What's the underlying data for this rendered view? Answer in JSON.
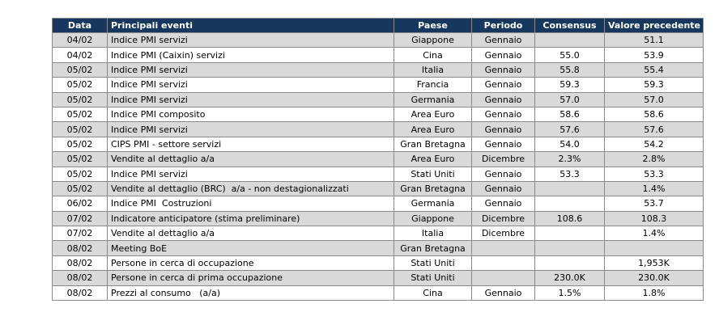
{
  "table": {
    "header": [
      "Data",
      "Principali eventi",
      "Paese",
      "Periodo",
      "Consensus",
      "Valore precedente"
    ],
    "rows": [
      [
        "04/02",
        "Indice PMI servizi",
        "Giappone",
        "Gennaio",
        null,
        "51.1"
      ],
      [
        "04/02",
        "Indice PMI (Caixin) servizi",
        "Cina",
        "Gennaio",
        "55.0",
        "53.9"
      ],
      [
        "05/02",
        "Indice PMI servizi",
        "Italia",
        "Gennaio",
        "55.8",
        "55.4"
      ],
      [
        "05/02",
        "Indice PMI servizi",
        "Francia",
        "Gennaio",
        "59.3",
        "59.3"
      ],
      [
        "05/02",
        "Indice PMI servizi",
        "Germania",
        "Gennaio",
        "57.0",
        "57.0"
      ],
      [
        "05/02",
        "Indice PMI composito",
        "Area Euro",
        "Gennaio",
        "58.6",
        "58.6"
      ],
      [
        "05/02",
        "Indice PMI servizi",
        "Area Euro",
        "Gennaio",
        "57.6",
        "57.6"
      ],
      [
        "05/02",
        "CIPS PMI - settore servizi",
        "Gran Bretagna",
        "Gennaio",
        "54.0",
        "54.2"
      ],
      [
        "05/02",
        "Vendite al dettaglio a/a",
        "Area Euro",
        "Dicembre",
        "2.3%",
        "2.8%"
      ],
      [
        "05/02",
        "Indice PMI servizi",
        "Stati Uniti",
        "Gennaio",
        "53.3",
        "53.3"
      ],
      [
        "05/02",
        "Vendite al dettaglio (BRC)  a/a - non destagionalizzati",
        "Gran Bretagna",
        "Gennaio",
        null,
        "1.4%"
      ],
      [
        "06/02",
        "Indice PMI  Costruzioni",
        "Germania",
        "Gennaio",
        null,
        "53.7"
      ],
      [
        "07/02",
        "Indicatore anticipatore (stima preliminare)",
        "Giappone",
        "Dicembre",
        "108.6",
        "108.3"
      ],
      [
        "07/02",
        "Vendite al dettaglio a/a",
        "Italia",
        "Dicembre",
        null,
        "1.4%"
      ],
      [
        "08/02",
        "Meeting BoE",
        "Gran Bretagna",
        null,
        null,
        null
      ],
      [
        "08/02",
        "Persone in cerca di occupazione",
        "Stati Uniti",
        null,
        null,
        "1,953K"
      ],
      [
        "08/02",
        "Persone in cerca di prima occupazione",
        "Stati Uniti",
        null,
        "230.0K",
        "230.0K"
      ],
      [
        "08/02",
        "Prezzi al consumo   (a/a)",
        "Cina",
        "Gennaio",
        "1.5%",
        "1.8%"
      ]
    ]
  }
}
